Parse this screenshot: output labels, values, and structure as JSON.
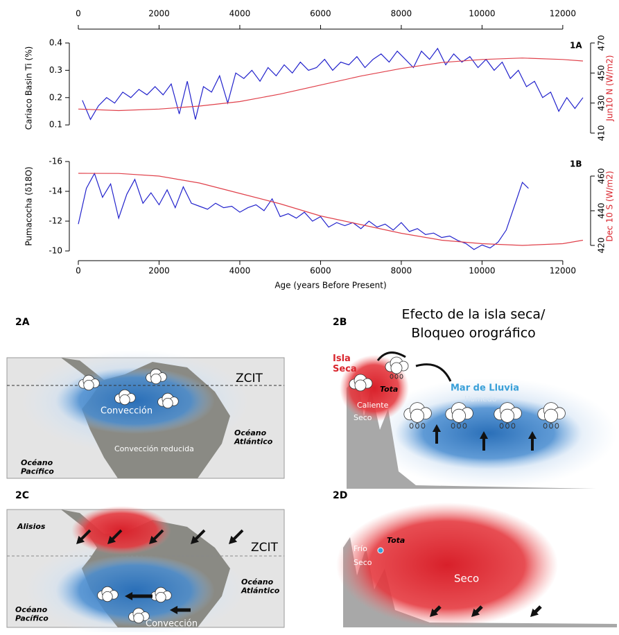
{
  "chart_data": [
    {
      "type": "line",
      "label": "1A",
      "ylabel": "Cariaco Basin Ti (%)",
      "y2label": "Jun10 N (W/m2)",
      "xlim": [
        0,
        12500
      ],
      "xticks": [
        0,
        2000,
        4000,
        6000,
        8000,
        10000,
        12000
      ],
      "x_axis": "top",
      "ylim": [
        0.07,
        0.4
      ],
      "yticks": [
        0.1,
        0.2,
        0.3,
        0.4
      ],
      "y2lim": [
        410,
        470
      ],
      "y2ticks": [
        410,
        430,
        450,
        470
      ],
      "series": [
        {
          "color": "#2222cc",
          "axis": "y",
          "x": [
            100,
            300,
            500,
            700,
            900,
            1100,
            1300,
            1500,
            1700,
            1900,
            2100,
            2300,
            2500,
            2700,
            2900,
            3100,
            3300,
            3500,
            3700,
            3900,
            4100,
            4300,
            4500,
            4700,
            4900,
            5100,
            5300,
            5500,
            5700,
            5900,
            6100,
            6300,
            6500,
            6700,
            6900,
            7100,
            7300,
            7500,
            7700,
            7900,
            8100,
            8300,
            8500,
            8700,
            8900,
            9100,
            9300,
            9500,
            9700,
            9900,
            10100,
            10300,
            10500,
            10700,
            10900,
            11100,
            11300,
            11500,
            11700,
            11900,
            12100,
            12300,
            12500
          ],
          "values": [
            0.19,
            0.12,
            0.17,
            0.2,
            0.18,
            0.22,
            0.2,
            0.23,
            0.21,
            0.24,
            0.21,
            0.25,
            0.14,
            0.26,
            0.12,
            0.24,
            0.22,
            0.28,
            0.18,
            0.29,
            0.27,
            0.3,
            0.26,
            0.31,
            0.28,
            0.32,
            0.29,
            0.33,
            0.3,
            0.31,
            0.34,
            0.3,
            0.33,
            0.32,
            0.35,
            0.31,
            0.34,
            0.36,
            0.33,
            0.37,
            0.34,
            0.31,
            0.37,
            0.34,
            0.38,
            0.32,
            0.36,
            0.33,
            0.35,
            0.31,
            0.34,
            0.3,
            0.33,
            0.27,
            0.3,
            0.24,
            0.26,
            0.2,
            0.22,
            0.15,
            0.2,
            0.16,
            0.2
          ]
        },
        {
          "color": "#e0404a",
          "axis": "y2",
          "x": [
            0,
            1000,
            2000,
            3000,
            4000,
            5000,
            6000,
            7000,
            8000,
            9000,
            10000,
            11000,
            12000,
            12500
          ],
          "values": [
            426,
            425,
            426,
            428,
            431,
            436,
            442,
            448,
            453,
            457,
            459,
            460,
            459,
            458
          ]
        }
      ]
    },
    {
      "type": "line",
      "label": "1B",
      "ylabel": "Pumacocha (δ18O)",
      "y2label": "Dec 10 S (W/m2)",
      "xlabel": "Age (years Before Present)",
      "xlim": [
        0,
        12500
      ],
      "xticks": [
        0,
        2000,
        4000,
        6000,
        8000,
        10000,
        12000
      ],
      "x_axis": "bottom",
      "ylim": [
        -10,
        -16
      ],
      "yticks": [
        -10,
        -12,
        -14,
        -16
      ],
      "y2lim": [
        416.8,
        468.4
      ],
      "y2ticks": [
        420,
        440,
        460
      ],
      "series": [
        {
          "color": "#2222cc",
          "axis": "y",
          "x": [
            0,
            200,
            400,
            600,
            800,
            1000,
            1200,
            1400,
            1600,
            1800,
            2000,
            2200,
            2400,
            2600,
            2800,
            3000,
            3200,
            3400,
            3600,
            3800,
            4000,
            4200,
            4400,
            4600,
            4800,
            5000,
            5200,
            5400,
            5600,
            5800,
            6000,
            6200,
            6400,
            6600,
            6800,
            7000,
            7200,
            7400,
            7600,
            7800,
            8000,
            8200,
            8400,
            8600,
            8800,
            9000,
            9200,
            9400,
            9600,
            9800,
            10000,
            10200,
            10400,
            10600,
            10800,
            11000,
            11150
          ],
          "values": [
            -11.8,
            -14.2,
            -15.2,
            -13.6,
            -14.5,
            -12.2,
            -13.8,
            -14.8,
            -13.2,
            -13.9,
            -13.1,
            -14.1,
            -12.9,
            -14.3,
            -13.2,
            -13.0,
            -12.8,
            -13.2,
            -12.9,
            -13.0,
            -12.6,
            -12.9,
            -13.1,
            -12.7,
            -13.5,
            -12.3,
            -12.5,
            -12.2,
            -12.6,
            -12.0,
            -12.3,
            -11.6,
            -11.9,
            -11.7,
            -11.9,
            -11.5,
            -12.0,
            -11.6,
            -11.8,
            -11.4,
            -11.9,
            -11.3,
            -11.5,
            -11.1,
            -11.2,
            -10.9,
            -11.0,
            -10.7,
            -10.5,
            -10.1,
            -10.4,
            -10.2,
            -10.6,
            -11.4,
            -13.0,
            -14.6,
            -14.2
          ]
        },
        {
          "color": "#e0404a",
          "axis": "y2",
          "x": [
            0,
            1000,
            2000,
            3000,
            4000,
            5000,
            6000,
            7000,
            8000,
            9000,
            10000,
            11000,
            12000,
            12500
          ],
          "values": [
            461.6,
            461.5,
            460,
            456,
            450,
            444,
            437,
            432,
            427,
            423,
            421,
            420,
            421,
            423
          ]
        }
      ]
    }
  ],
  "panels": [
    {
      "label": "2A",
      "texts": [
        "ZCIT",
        "Convección",
        "Océano Atlántico",
        "Convección reducida",
        "Océano Pacífico"
      ]
    },
    {
      "label": "2B",
      "title": [
        "Efecto de la isla seca/",
        "Bloqueo orográfico"
      ],
      "texts": [
        "Isla Seca",
        "Tota",
        "Caliente",
        "Seco",
        "Mar de Lluvia",
        "Humedo"
      ]
    },
    {
      "label": "2C",
      "texts": [
        "Alisios",
        "ZCIT",
        "Océano Atlántico",
        "Océano Pacífico",
        "Convección"
      ]
    },
    {
      "label": "2D",
      "texts": [
        "Frío",
        "Seco",
        "Tota",
        "Seco"
      ]
    }
  ]
}
